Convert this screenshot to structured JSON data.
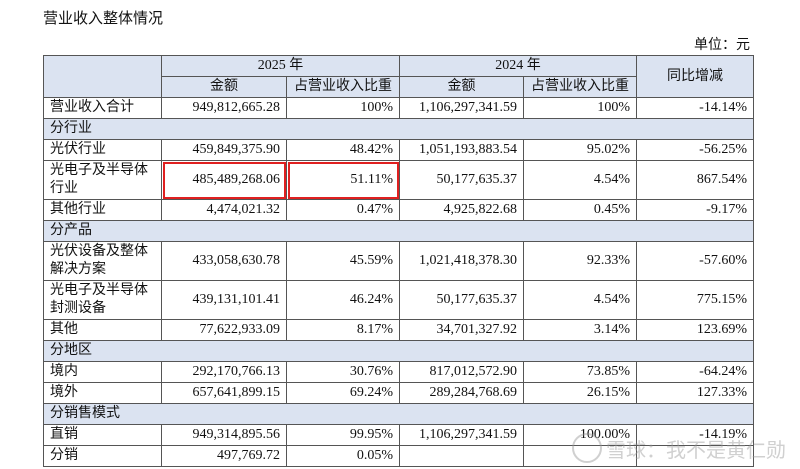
{
  "title": "营业收入整体情况",
  "unit": "单位：元",
  "header": {
    "y2025": "2025 年",
    "y2024": "2024 年",
    "yoy": "同比增减",
    "amount": "金额",
    "share": "占营业收入比重"
  },
  "total": {
    "label": "营业收入合计",
    "a2025": "949,812,665.28",
    "s2025": "100%",
    "a2024": "1,106,297,341.59",
    "s2024": "100%",
    "yoy": "-14.14%"
  },
  "sections": {
    "industry": "分行业",
    "product": "分产品",
    "region": "分地区",
    "sales": "分销售模式"
  },
  "rows": {
    "pv": {
      "label": "光伏行业",
      "a2025": "459,849,375.90",
      "s2025": "48.42%",
      "a2024": "1,051,193,883.54",
      "s2024": "95.02%",
      "yoy": "-56.25%"
    },
    "opto": {
      "label": "光电子及半导体行业",
      "a2025": "485,489,268.06",
      "s2025": "51.11%",
      "a2024": "50,177,635.37",
      "s2024": "4.54%",
      "yoy": "867.54%"
    },
    "other_ind": {
      "label": "其他行业",
      "a2025": "4,474,021.32",
      "s2025": "0.47%",
      "a2024": "4,925,822.68",
      "s2024": "0.45%",
      "yoy": "-9.17%"
    },
    "pv_equip": {
      "label": "光伏设备及整体解决方案",
      "a2025": "433,058,630.78",
      "s2025": "45.59%",
      "a2024": "1,021,418,378.30",
      "s2024": "92.33%",
      "yoy": "-57.60%"
    },
    "opto_equip": {
      "label": "光电子及半导体封测设备",
      "a2025": "439,131,101.41",
      "s2025": "46.24%",
      "a2024": "50,177,635.37",
      "s2024": "4.54%",
      "yoy": "775.15%"
    },
    "other_prod": {
      "label": "其他",
      "a2025": "77,622,933.09",
      "s2025": "8.17%",
      "a2024": "34,701,327.92",
      "s2024": "3.14%",
      "yoy": "123.69%"
    },
    "domestic": {
      "label": "境内",
      "a2025": "292,170,766.13",
      "s2025": "30.76%",
      "a2024": "817,012,572.90",
      "s2024": "73.85%",
      "yoy": "-64.24%"
    },
    "overseas": {
      "label": "境外",
      "a2025": "657,641,899.15",
      "s2025": "69.24%",
      "a2024": "289,284,768.69",
      "s2024": "26.15%",
      "yoy": "127.33%"
    },
    "direct": {
      "label": "直销",
      "a2025": "949,314,895.56",
      "s2025": "99.95%",
      "a2024": "1,106,297,341.59",
      "s2024": "100.00%",
      "yoy": "-14.19%"
    },
    "distrib": {
      "label": "分销",
      "a2025": "497,769.72",
      "s2025": "0.05%",
      "a2024": "",
      "s2024": "",
      "yoy": ""
    }
  },
  "watermark": {
    "text": "雪球：我不是黄仁勋",
    "icon": "snowball-logo-icon"
  },
  "colors": {
    "header_bg": "#dbe3f1",
    "highlight": "#e02020"
  }
}
